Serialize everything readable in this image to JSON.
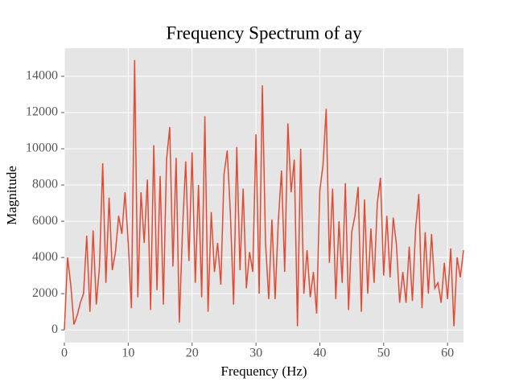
{
  "chart_data": {
    "type": "line",
    "title": "Frequency Spectrum of ay",
    "x_label": "Frequency (Hz)",
    "y_label": "Magnitude",
    "x": [
      0,
      0.5,
      1,
      1.5,
      2,
      2.5,
      3,
      3.5,
      4,
      4.5,
      5,
      5.5,
      6,
      6.5,
      7,
      7.5,
      8,
      8.5,
      9,
      9.5,
      10,
      10.5,
      11,
      11.5,
      12,
      12.5,
      13,
      13.5,
      14,
      14.5,
      15,
      15.5,
      16,
      16.5,
      17,
      17.5,
      18,
      18.5,
      19,
      19.5,
      20,
      20.5,
      21,
      21.5,
      22,
      22.5,
      23,
      23.5,
      24,
      24.5,
      25,
      25.5,
      26,
      26.5,
      27,
      27.5,
      28,
      28.5,
      29,
      29.5,
      30,
      30.5,
      31,
      31.5,
      32,
      32.5,
      33,
      33.5,
      34,
      34.5,
      35,
      35.5,
      36,
      36.5,
      37,
      37.5,
      38,
      38.5,
      39,
      39.5,
      40,
      40.5,
      41,
      41.5,
      42,
      42.5,
      43,
      43.5,
      44,
      44.5,
      45,
      45.5,
      46,
      46.5,
      47,
      47.5,
      48,
      48.5,
      49,
      49.5,
      50,
      50.5,
      51,
      51.5,
      52,
      52.5,
      53,
      53.5,
      54,
      54.5,
      55,
      55.5,
      56,
      56.5,
      57,
      57.5,
      58,
      58.5,
      59,
      59.5,
      60,
      60.5,
      61,
      61.5,
      62,
      62.5
    ],
    "series": [
      {
        "color": "#e24a33",
        "values": [
          0,
          4000,
          2500,
          300,
          800,
          1500,
          2000,
          5200,
          1000,
          5500,
          1400,
          3500,
          9200,
          2600,
          7300,
          3300,
          4300,
          6300,
          5300,
          7600,
          4800,
          1200,
          14900,
          1800,
          7600,
          4800,
          8300,
          1100,
          10200,
          2200,
          8500,
          1400,
          9400,
          11200,
          3500,
          9500,
          400,
          5500,
          9300,
          3800,
          9800,
          2600,
          8000,
          1800,
          11800,
          1000,
          6500,
          3200,
          4800,
          2500,
          8600,
          9900,
          6400,
          1400,
          10100,
          3300,
          7800,
          2300,
          4300,
          3200,
          10800,
          2000,
          13500,
          4800,
          1700,
          6100,
          1700,
          6000,
          8800,
          3200,
          11400,
          7600,
          9400,
          200,
          10000,
          2000,
          4400,
          1800,
          3200,
          900,
          7700,
          9100,
          12200,
          3700,
          7800,
          1700,
          6000,
          2600,
          8100,
          1100,
          5400,
          6300,
          7900,
          1000,
          7200,
          2000,
          5600,
          2600,
          7000,
          8400,
          3000,
          6300,
          2900,
          6200,
          4700,
          1500,
          3200,
          1500,
          4600,
          1600,
          5600,
          7500,
          1200,
          5400,
          2000,
          5300,
          2300,
          2600,
          1500,
          3700,
          1700,
          4500,
          200,
          4000,
          2900,
          4400
        ]
      }
    ],
    "xlim": [
      0,
      62.5
    ],
    "ylim": [
      -700,
      15550
    ],
    "xticks": [
      0,
      10,
      20,
      30,
      40,
      50,
      60
    ],
    "yticks": [
      0,
      2000,
      4000,
      6000,
      8000,
      10000,
      12000,
      14000
    ],
    "grid": true
  }
}
